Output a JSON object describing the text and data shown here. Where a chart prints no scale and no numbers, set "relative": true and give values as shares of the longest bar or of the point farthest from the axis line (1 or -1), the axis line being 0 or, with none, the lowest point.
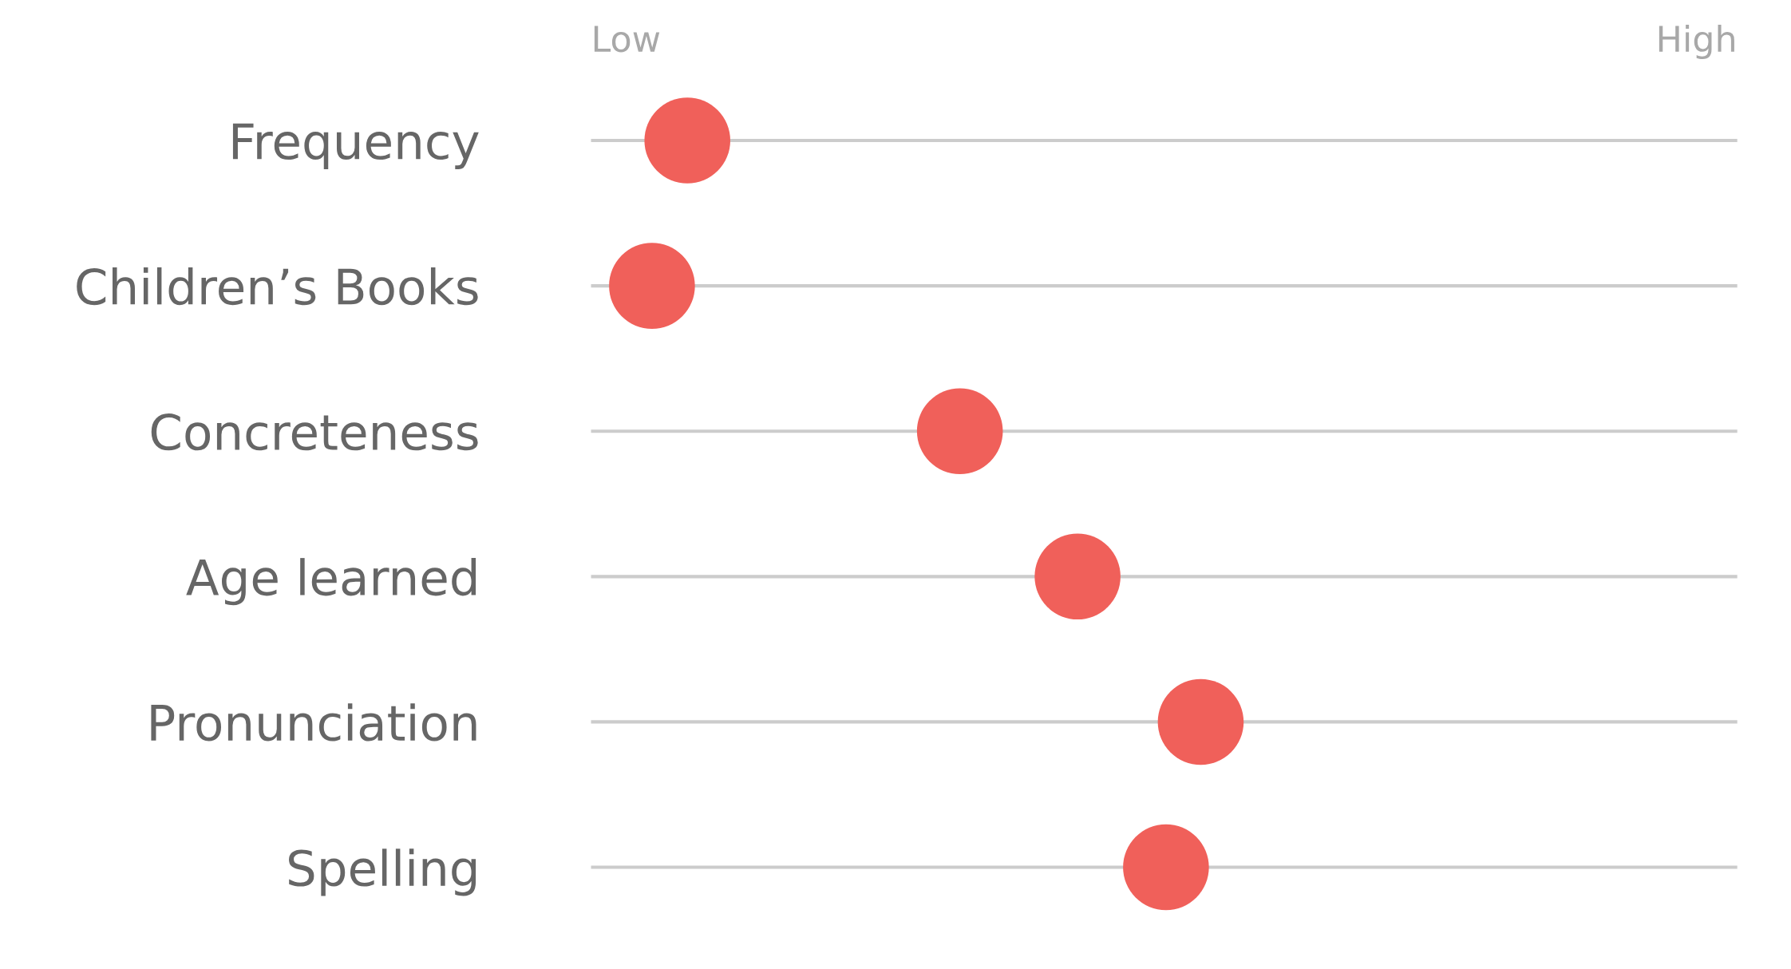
{
  "chart_data": {
    "type": "scatter",
    "orientation": "horizontal",
    "relative": true,
    "categories": [
      "Frequency",
      "Children’s Books",
      "Concreteness",
      "Age learned",
      "Pronunciation",
      "Spelling"
    ],
    "values": [
      0.158,
      0.1,
      0.605,
      0.798,
      1,
      0.943
    ],
    "color": "#f0605a",
    "marker": "circle",
    "grid": "y",
    "annotations": [
      "Low",
      "High"
    ]
  }
}
